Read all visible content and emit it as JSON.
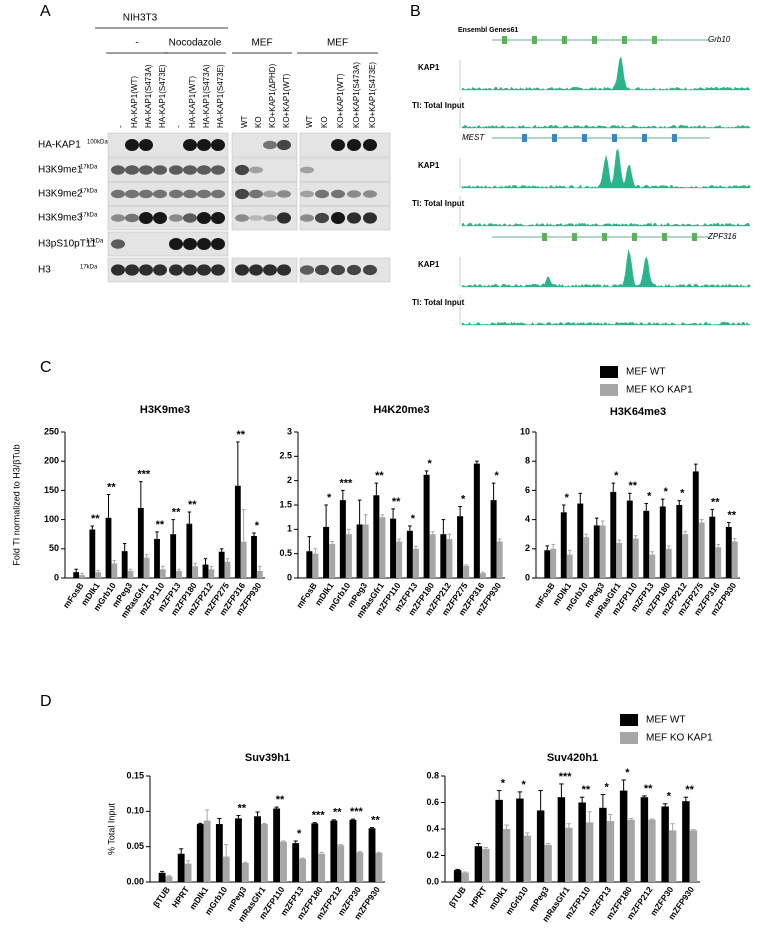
{
  "panel_a": {
    "label": "A",
    "cell_line": "NIH3T3",
    "groups": [
      {
        "title": "-",
        "lanes": [
          "-",
          "HA-KAP1(WT)",
          "HA-KAP1(S473A)",
          "HA-KAP1(S473E)"
        ]
      },
      {
        "title": "Nocodazole",
        "lanes": [
          "-",
          "HA-KAP1(WT)",
          "HA-KAP1(S473A)",
          "HA-KAP1(S473E)"
        ]
      },
      {
        "title": "MEF",
        "lanes": [
          "WT",
          "KO",
          "KO+KAP1(ΔPHD)",
          "KO+KAP1(WT)"
        ]
      },
      {
        "title": "MEF",
        "lanes": [
          "WT",
          "KO",
          "KO+KAP1(WT)",
          "KO+KAP1(S473A)",
          "KO+KAP1(S473E)"
        ]
      }
    ],
    "rows": [
      {
        "name": "HA-KAP1",
        "size": "100kDa"
      },
      {
        "name": "H3K9me1",
        "size": "17kDa"
      },
      {
        "name": "H3K9me2",
        "size": "17kDa"
      },
      {
        "name": "H3K9me3",
        "size": "17kDa"
      },
      {
        "name": "H3pS10pT11",
        "size": "17kDa"
      },
      {
        "name": "H3",
        "size": "17kDa"
      }
    ]
  },
  "panel_b": {
    "label": "B",
    "gene_track": "Ensembl Genes61",
    "loci": [
      {
        "gene": "Grb10",
        "tracks": [
          "KAP1",
          "TI: Total Input"
        ]
      },
      {
        "gene": "MEST",
        "tracks": [
          "KAP1",
          "TI: Total Input"
        ]
      },
      {
        "gene": "ZPF316",
        "tracks": [
          "KAP1",
          "TI: Total Input"
        ]
      }
    ]
  },
  "panel_c": {
    "label": "C"
  },
  "panel_d": {
    "label": "D"
  },
  "chart_data": [
    {
      "type": "bar",
      "title": "H3K9me3",
      "ylabel": "Fold TI normalized to H3/βTub",
      "legend": "upper right",
      "categories": [
        "mFosB",
        "mDlk1",
        "mGrb10",
        "mPeg3",
        "mRasGfr1",
        "mZFP110",
        "mZFP13",
        "mZFP180",
        "mZFP212",
        "mZFP275",
        "mZFP316",
        "mZFP930"
      ],
      "series": [
        {
          "name": "MEF WT",
          "color": "#000000",
          "values": [
            10,
            83,
            103,
            46,
            120,
            67,
            75,
            93,
            23,
            45,
            158,
            72
          ],
          "errors": [
            5,
            6,
            40,
            13,
            45,
            12,
            25,
            20,
            10,
            5,
            75,
            5
          ]
        },
        {
          "name": "MEF KO KAP1",
          "color": "#a6a6a6",
          "values": [
            5,
            10,
            25,
            12,
            35,
            15,
            12,
            20,
            15,
            28,
            62,
            12
          ],
          "errors": [
            3,
            3,
            5,
            3,
            5,
            5,
            3,
            5,
            5,
            5,
            55,
            8
          ]
        }
      ],
      "annotations": [
        null,
        "**",
        "**",
        null,
        "***",
        "**",
        "**",
        "**",
        null,
        null,
        "**",
        "*"
      ],
      "ylim": [
        0,
        250
      ],
      "yticks": [
        0,
        50,
        100,
        150,
        200,
        250
      ]
    },
    {
      "type": "bar",
      "title": "H4K20me3",
      "categories": [
        "mFosB",
        "mDlk1",
        "mGrb10",
        "mPeg3",
        "mRasGfr1",
        "mZFP110",
        "mZFP13",
        "mZFP180",
        "mZFP212",
        "mZFP275",
        "mZFP316",
        "mZFP930"
      ],
      "series": [
        {
          "color": "#000000",
          "values": [
            0.55,
            1.05,
            1.6,
            1.1,
            1.7,
            1.22,
            0.97,
            2.12,
            0.9,
            1.27,
            2.35,
            1.6
          ],
          "errors": [
            0.3,
            0.45,
            0.2,
            0.5,
            0.25,
            0.2,
            0.1,
            0.08,
            0.3,
            0.2,
            0.05,
            0.35
          ]
        },
        {
          "color": "#a6a6a6",
          "values": [
            0.5,
            0.7,
            0.9,
            1.1,
            1.25,
            0.75,
            0.6,
            0.9,
            0.8,
            0.25,
            0.1,
            0.75
          ],
          "errors": [
            0.1,
            0.05,
            0.1,
            0.2,
            0.05,
            0.05,
            0.05,
            0.05,
            0.1,
            0.02,
            0.02,
            0.05
          ]
        }
      ],
      "annotations": [
        null,
        "*",
        "***",
        null,
        "**",
        "**",
        "*",
        "*",
        null,
        "*",
        null,
        "*"
      ],
      "ylim": [
        0,
        3
      ],
      "yticks": [
        0,
        0.5,
        1,
        1.5,
        2,
        2.5,
        3
      ]
    },
    {
      "type": "bar",
      "title": "H3K64me3",
      "categories": [
        "mFosB",
        "mDlk1",
        "mGrb10",
        "mPeg3",
        "mRasGfr1",
        "mZFP110",
        "mZFP13",
        "mZFP180",
        "mZFP212",
        "mZFP275",
        "mZFP316",
        "mZFP930"
      ],
      "series": [
        {
          "color": "#000000",
          "values": [
            1.9,
            4.5,
            5.1,
            3.6,
            5.9,
            5.3,
            4.6,
            4.9,
            5.0,
            7.3,
            4.2,
            3.5
          ],
          "errors": [
            0.3,
            0.5,
            0.7,
            0.5,
            0.6,
            0.5,
            0.5,
            0.5,
            0.3,
            0.5,
            0.5,
            0.3
          ]
        },
        {
          "color": "#a6a6a6",
          "values": [
            2.0,
            1.6,
            2.8,
            3.6,
            2.4,
            2.7,
            1.6,
            2.0,
            3.0,
            3.8,
            2.1,
            2.5
          ],
          "errors": [
            0.3,
            0.3,
            0.2,
            0.3,
            0.2,
            0.2,
            0.2,
            0.2,
            0.2,
            0.2,
            0.2,
            0.2
          ]
        }
      ],
      "annotations": [
        null,
        "*",
        null,
        null,
        "*",
        "**",
        "*",
        "*",
        "*",
        null,
        "**",
        "**"
      ],
      "ylim": [
        0,
        10
      ],
      "yticks": [
        0,
        2,
        4,
        6,
        8,
        10
      ]
    },
    {
      "type": "bar",
      "title": "Suv39h1",
      "ylabel": "% Total Input",
      "legend": "upper right",
      "categories": [
        "βTUB",
        "HPRT",
        "mDlk1",
        "mGrb10",
        "mPeg3",
        "mRasGfr1",
        "mZFP110",
        "mZFP13",
        "mZFP180",
        "mZFP212",
        "mZFP30",
        "mZFP930"
      ],
      "series": [
        {
          "name": "MEF WT",
          "color": "#000000",
          "values": [
            0.013,
            0.04,
            0.082,
            0.082,
            0.09,
            0.093,
            0.104,
            0.055,
            0.083,
            0.087,
            0.088,
            0.076
          ],
          "errors": [
            0.002,
            0.007,
            0.001,
            0.008,
            0.004,
            0.006,
            0.002,
            0.003,
            0.001,
            0.001,
            0.001,
            0.001
          ]
        },
        {
          "name": "MEF KO KAP1",
          "color": "#a6a6a6",
          "values": [
            0.008,
            0.026,
            0.087,
            0.036,
            0.027,
            0.082,
            0.057,
            0.033,
            0.04,
            0.052,
            0.042,
            0.041
          ],
          "errors": [
            0.001,
            0.004,
            0.015,
            0.017,
            0.001,
            0.001,
            0.001,
            0.001,
            0.002,
            0.001,
            0.001,
            0.001
          ]
        }
      ],
      "annotations": [
        null,
        null,
        null,
        null,
        "**",
        null,
        "**",
        "*",
        "***",
        "**",
        "***",
        "**"
      ],
      "ylim": [
        0,
        0.15
      ],
      "yticks": [
        {
          "value": 0,
          "label": "0.00"
        },
        0.05,
        {
          "value": 0.1,
          "label": "0.10"
        },
        0.15
      ]
    },
    {
      "type": "bar",
      "title": "Suv420h1",
      "categories": [
        "βTUB",
        "HPRT",
        "mDlk1",
        "mGrb10",
        "mPeg3",
        "mRasGfr1",
        "mZFP110",
        "mZFP13",
        "mZFP180",
        "mZFP212",
        "mZFP30",
        "mZFP930"
      ],
      "series": [
        {
          "color": "#000000",
          "values": [
            0.09,
            0.27,
            0.62,
            0.63,
            0.54,
            0.64,
            0.6,
            0.56,
            0.69,
            0.64,
            0.57,
            0.61
          ],
          "errors": [
            0.005,
            0.02,
            0.07,
            0.05,
            0.15,
            0.1,
            0.04,
            0.1,
            0.08,
            0.01,
            0.02,
            0.03
          ]
        },
        {
          "color": "#a6a6a6",
          "values": [
            0.07,
            0.25,
            0.4,
            0.35,
            0.28,
            0.41,
            0.45,
            0.46,
            0.47,
            0.47,
            0.39,
            0.39
          ],
          "errors": [
            0.005,
            0.01,
            0.03,
            0.02,
            0.01,
            0.03,
            0.08,
            0.05,
            0.01,
            0.005,
            0.05,
            0.005
          ]
        }
      ],
      "annotations": [
        null,
        null,
        "*",
        "*",
        null,
        "***",
        "**",
        "*",
        "*",
        "**",
        "*",
        "**"
      ],
      "ylim": [
        0,
        0.8
      ],
      "yticks": [
        {
          "value": 0,
          "label": "0.0"
        },
        0.2,
        0.4,
        0.6,
        0.8
      ]
    }
  ]
}
